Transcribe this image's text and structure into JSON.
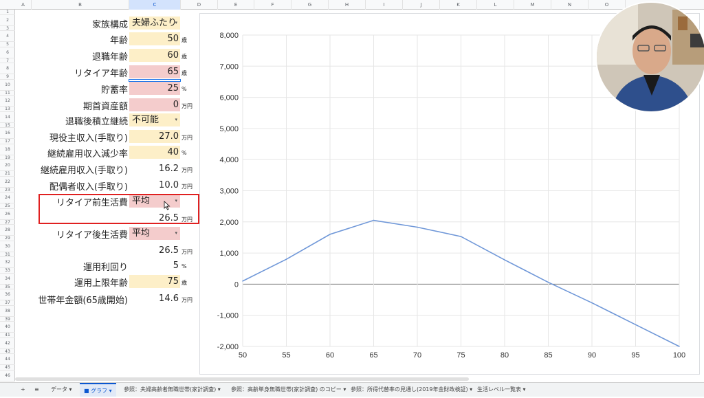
{
  "columns": [
    "A",
    "B",
    "C",
    "D",
    "E",
    "F",
    "G",
    "H",
    "I",
    "J",
    "K",
    "L",
    "M",
    "N",
    "O"
  ],
  "rows": [
    "1",
    "2",
    "3",
    "4",
    "5",
    "6",
    "7",
    "8",
    "9",
    "10",
    "11",
    "12",
    "13",
    "14",
    "15",
    "16",
    "17",
    "18",
    "19",
    "20",
    "21",
    "22",
    "23",
    "24",
    "25",
    "26",
    "27",
    "28",
    "29",
    "30",
    "31",
    "32",
    "33",
    "34",
    "35",
    "36",
    "37",
    "38",
    "39",
    "40",
    "41",
    "42",
    "43",
    "44",
    "45",
    "46"
  ],
  "form": [
    {
      "label": "家族構成",
      "value": "夫婦ふたり",
      "unit": "",
      "style": "yellow",
      "dropdown": true
    },
    {
      "label": "年齢",
      "value": "50",
      "unit": "歳",
      "style": "yellow"
    },
    {
      "label": "退職年齢",
      "value": "60",
      "unit": "歳",
      "style": "yellow"
    },
    {
      "label": "リタイア年齢",
      "value": "65",
      "unit": "歳",
      "style": "pink"
    },
    {
      "label": "貯蓄率",
      "value": "25",
      "unit": "%",
      "style": "pink"
    },
    {
      "label": "期首資産額",
      "value": "0",
      "unit": "万円",
      "style": "pink"
    },
    {
      "label": "退職後積立継続",
      "value": "不可能",
      "unit": "",
      "style": "yellow",
      "dropdown": true
    },
    {
      "label": "現役主収入(手取り)",
      "value": "27.0",
      "unit": "万円",
      "style": "yellow"
    },
    {
      "label": "継続雇用収入減少率",
      "value": "40",
      "unit": "%",
      "style": "yellow"
    },
    {
      "label": "継続雇用収入(手取り)",
      "value": "16.2",
      "unit": "万円",
      "style": "none"
    },
    {
      "label": "配偶者収入(手取り)",
      "value": "10.0",
      "unit": "万円",
      "style": "none"
    },
    {
      "label": "リタイア前生活費",
      "value": "平均",
      "unit": "",
      "style": "pink",
      "dropdown": true
    },
    {
      "label": "",
      "value": "26.5",
      "unit": "万円",
      "style": "none"
    },
    {
      "label": "リタイア後生活費",
      "value": "平均",
      "unit": "",
      "style": "pink",
      "dropdown": true
    },
    {
      "label": "",
      "value": "26.5",
      "unit": "万円",
      "style": "none"
    },
    {
      "label": "運用利回り",
      "value": "5",
      "unit": "%",
      "style": "none"
    },
    {
      "label": "運用上限年齢",
      "value": "75",
      "unit": "歳",
      "style": "yellow"
    },
    {
      "label": "世帯年金額(65歳開始)",
      "value": "14.6",
      "unit": "万円",
      "style": "none"
    }
  ],
  "tabs": {
    "add": "+",
    "menu": "≡",
    "items": [
      "データ ▾",
      "グラフ ▾",
      "参照：夫婦高齢者無職世帯(家計調査) ▾",
      "参照：高齢単身無職世帯(家計調査) のコピー ▾",
      "参照：所得代替率の見通し(2019年金財政検証) ▾",
      "生活レベル一覧表 ▾"
    ]
  },
  "chart_data": {
    "type": "line",
    "x": [
      50,
      55,
      60,
      65,
      70,
      75,
      80,
      85,
      90,
      95,
      100
    ],
    "series": [
      {
        "values": [
          100,
          800,
          1600,
          2050,
          1830,
          1530,
          780,
          60,
          -600,
          -1300,
          -2000
        ]
      }
    ],
    "xticks": [
      "50",
      "55",
      "60",
      "65",
      "70",
      "75",
      "80",
      "85",
      "90",
      "95",
      "100"
    ],
    "yticks": [
      "8,000",
      "7,000",
      "6,000",
      "5,000",
      "4,000",
      "3,000",
      "2,000",
      "1,000",
      "0",
      "-1,000",
      "-2,000"
    ],
    "xlim": [
      50,
      100
    ],
    "ylim": [
      -2000,
      8000
    ],
    "grid": true,
    "line_color": "#6f97d8"
  }
}
